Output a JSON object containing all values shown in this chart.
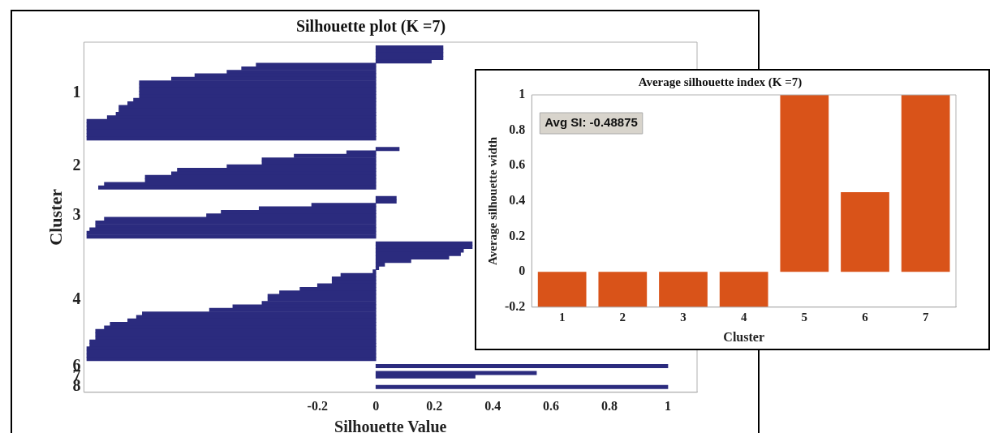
{
  "chart_data": [
    {
      "type": "bar",
      "orientation": "horizontal",
      "title": "Silhouette plot (K =7)",
      "xlabel": "Silhouette Value",
      "ylabel": "Cluster",
      "color": "#2b2b7e",
      "categories": [
        null,
        null,
        null,
        null,
        null,
        null,
        null,
        null,
        null,
        null,
        null,
        null,
        null,
        null,
        "1",
        null,
        null,
        null,
        null,
        null,
        null,
        null,
        null,
        null,
        null,
        null,
        null,
        null,
        null,
        null,
        null,
        null,
        null,
        null,
        null,
        "2",
        null,
        null,
        null,
        null,
        null,
        null,
        null,
        null,
        null,
        null,
        null,
        null,
        null,
        "3",
        null,
        null,
        null,
        null,
        null,
        null,
        null,
        null,
        null,
        null,
        null,
        null,
        null,
        null,
        null,
        null,
        null,
        null,
        null,
        null,
        null,
        null,
        null,
        "4",
        null,
        null,
        null,
        null,
        null,
        null,
        null,
        null,
        null,
        null,
        null,
        null,
        null,
        null,
        null,
        null,
        null,
        null,
        "6",
        null,
        null,
        "7",
        null,
        null,
        "8",
        null
      ],
      "values": [
        null,
        0.23,
        0.23,
        0.23,
        0.23,
        0.19,
        -0.41,
        -0.46,
        -0.51,
        -0.62,
        -0.7,
        -0.81,
        -0.81,
        -0.81,
        -0.81,
        -0.81,
        -0.83,
        -0.85,
        -0.88,
        -0.88,
        -0.89,
        -0.92,
        -0.99,
        -0.99,
        -0.99,
        -0.99,
        -0.99,
        -0.99,
        null,
        null,
        0.08,
        -0.1,
        -0.28,
        -0.39,
        -0.39,
        -0.51,
        -0.68,
        -0.7,
        -0.79,
        -0.79,
        -0.93,
        -0.95,
        null,
        null,
        0.07,
        0.07,
        -0.22,
        -0.4,
        -0.53,
        -0.58,
        -0.93,
        -0.96,
        -0.96,
        -0.98,
        -0.99,
        -0.99,
        null,
        0.33,
        0.33,
        0.3,
        0.29,
        0.25,
        0.12,
        0.03,
        0.01,
        -0.01,
        -0.12,
        -0.15,
        -0.15,
        -0.2,
        -0.26,
        -0.33,
        -0.37,
        -0.37,
        -0.39,
        -0.49,
        -0.57,
        -0.8,
        -0.82,
        -0.85,
        -0.91,
        -0.93,
        -0.96,
        -0.96,
        -0.96,
        -0.98,
        -0.98,
        -0.99,
        -0.99,
        -0.99,
        -0.99,
        null,
        1,
        null,
        0.55,
        0.34,
        null,
        null,
        1,
        null
      ],
      "xlim": [
        -1,
        1.1
      ],
      "xticks": [
        -0.2,
        0,
        0.2,
        0.4,
        0.6,
        0.8,
        1
      ]
    },
    {
      "type": "bar",
      "title": "Average silhouette index (K =7)",
      "xlabel": "Cluster",
      "ylabel": "Average silhouette width",
      "color": "#d95319",
      "categories": [
        "1",
        "2",
        "3",
        "4",
        "5",
        "6",
        "7"
      ],
      "values": [
        -0.2,
        -0.2,
        -0.2,
        -0.2,
        1,
        0.45,
        1
      ],
      "ylim": [
        -0.2,
        1
      ],
      "yticks": [
        -0.2,
        0,
        0.2,
        0.4,
        0.6,
        0.8,
        1
      ],
      "annotations": [
        "Avg SI: -0.48875"
      ]
    }
  ]
}
